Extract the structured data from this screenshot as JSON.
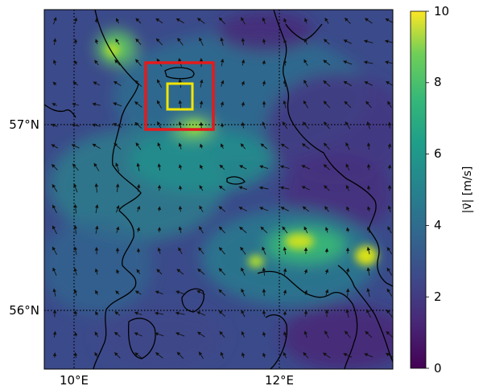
{
  "map": {
    "lat_labels": [
      {
        "text": "57°N",
        "lat": 57.0
      },
      {
        "text": "56°N",
        "lat": 56.0
      }
    ],
    "lon_labels": [
      {
        "text": "10°E",
        "lon": 10.0
      },
      {
        "text": "12°E",
        "lon": 12.0
      }
    ],
    "extent": {
      "lon_min": 9.7,
      "lon_max": 13.3,
      "lat_min": 55.6,
      "lat_max": 57.6
    },
    "gridlines": "dotted",
    "field_colormap": "viridis"
  },
  "colorbar": {
    "label": "|v⃗| [m/s]",
    "min": 0,
    "max": 10,
    "ticks": [
      "0",
      "2",
      "4",
      "6",
      "8",
      "10"
    ]
  },
  "boxes": [
    {
      "name": "outer-domain-box",
      "color": "#e41a1c"
    },
    {
      "name": "inner-domain-box",
      "color": "#f2e600"
    }
  ],
  "colors": {
    "background_field": "#3a3f86",
    "coastline": "#000000",
    "arrows": "#111111"
  }
}
